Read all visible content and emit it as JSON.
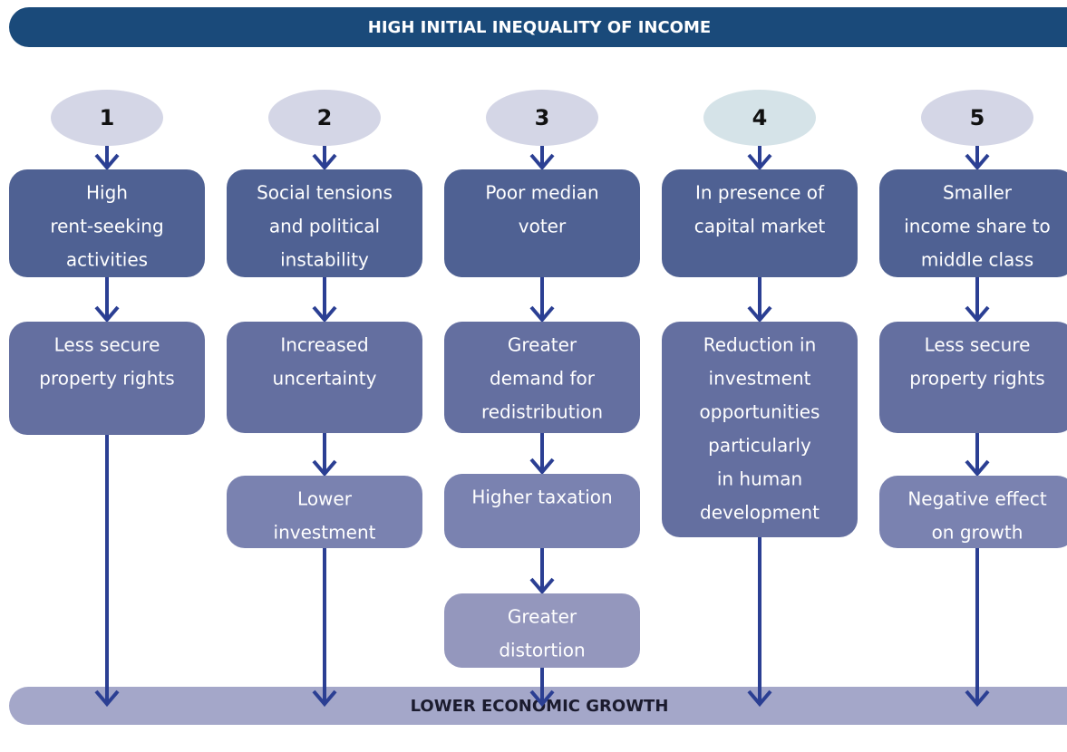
{
  "header": {
    "title": "HIGH INITIAL INEQUALITY OF INCOME"
  },
  "columns": [
    {
      "number": "1",
      "boxes": [
        [
          "High",
          "rent-seeking",
          "activities"
        ],
        [
          "Less secure",
          "property rights"
        ]
      ]
    },
    {
      "number": "2",
      "boxes": [
        [
          "Social tensions",
          "and political",
          "instability"
        ],
        [
          "Increased",
          "uncertainty"
        ],
        [
          "Lower",
          "investment"
        ]
      ]
    },
    {
      "number": "3",
      "boxes": [
        [
          "Poor median",
          "voter"
        ],
        [
          "Greater",
          "demand for",
          "redistribution"
        ],
        [
          "Higher taxation"
        ],
        [
          "Greater",
          "distortion"
        ]
      ]
    },
    {
      "number": "4",
      "boxes": [
        [
          "In presence of",
          "capital market"
        ],
        [
          "Reduction in",
          "investment",
          "opportunities",
          "particularly",
          "in human",
          "development"
        ]
      ]
    },
    {
      "number": "5",
      "boxes": [
        [
          "Smaller",
          "income share to",
          "middle class"
        ],
        [
          "Less secure",
          "property rights"
        ],
        [
          "Negative effect",
          "on growth"
        ]
      ]
    }
  ],
  "footer": {
    "title": "LOWER ECONOMIC GROWTH"
  }
}
